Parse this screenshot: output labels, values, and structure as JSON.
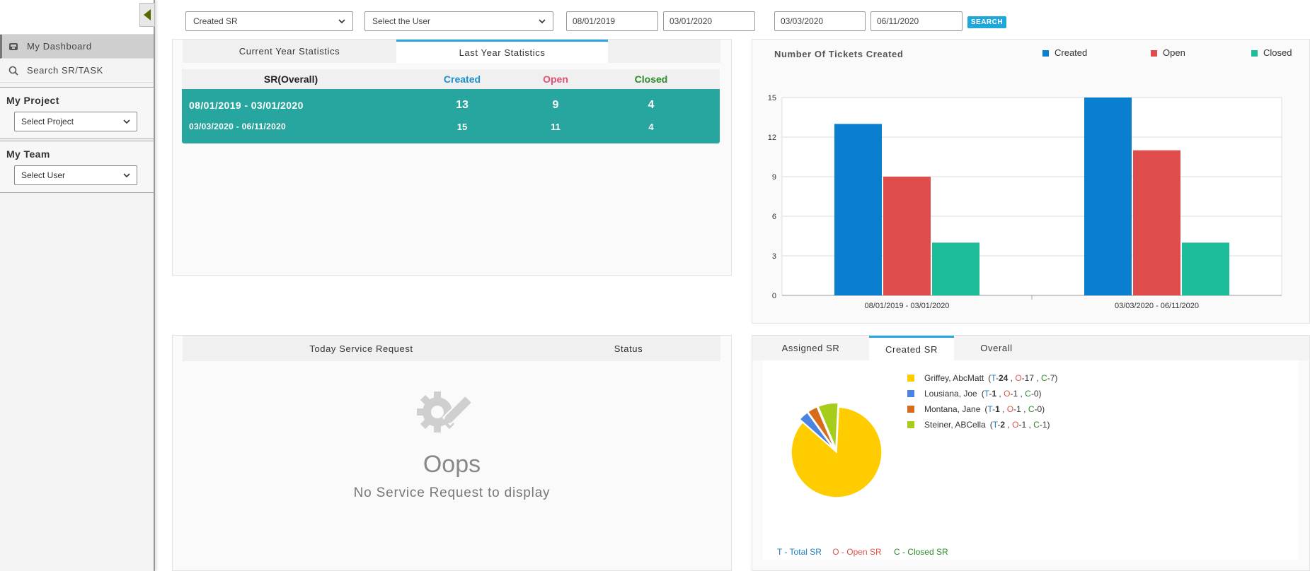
{
  "sidebar": {
    "nav": [
      {
        "label": "My Dashboard",
        "icon": "inbox-icon"
      },
      {
        "label": "Search SR/TASK",
        "icon": "search-icon"
      }
    ],
    "project": {
      "title": "My Project",
      "select": "Select Project"
    },
    "team": {
      "title": "My Team",
      "select": "Select User"
    }
  },
  "filters": {
    "type": "Created SR",
    "user": "Select the User",
    "date1_from": "08/01/2019",
    "date1_to": "03/01/2020",
    "date2_from": "03/03/2020",
    "date2_to": "06/11/2020",
    "search_label": "SEARCH"
  },
  "stats_panel": {
    "tabs": [
      "Current Year Statistics",
      "Last Year Statistics"
    ],
    "head": {
      "label": "SR(Overall)",
      "created": "Created",
      "open": "Open",
      "closed": "Closed"
    },
    "rows": [
      {
        "range": "08/01/2019 - 03/01/2020",
        "created": "13",
        "open": "9",
        "closed": "4"
      },
      {
        "range": "03/03/2020 - 06/11/2020",
        "created": "15",
        "open": "11",
        "closed": "4"
      }
    ]
  },
  "chart_panel": {
    "title": "Number Of Tickets Created"
  },
  "chart_data": {
    "type": "bar",
    "title": "Number Of Tickets Created",
    "categories": [
      "08/01/2019 - 03/01/2020",
      "03/03/2020 - 06/11/2020"
    ],
    "series": [
      {
        "name": "Created",
        "color": "#0a7fd0",
        "values": [
          13,
          15
        ]
      },
      {
        "name": "Open",
        "color": "#de4c4c",
        "values": [
          9,
          11
        ]
      },
      {
        "name": "Closed",
        "color": "#1dbd9a",
        "values": [
          4,
          4
        ]
      }
    ],
    "ylim": [
      0,
      15
    ],
    "yticks": [
      "0",
      "3",
      "6",
      "9",
      "12",
      "15"
    ],
    "grid": true,
    "legend": "top-right"
  },
  "requests_panel": {
    "head_left": "Today Service Request",
    "head_right": "Status",
    "oops": "Oops",
    "message": "No Service Request to display"
  },
  "pie_panel": {
    "tabs": [
      "Assigned SR",
      "Created SR",
      "Overall"
    ],
    "entries": [
      {
        "name": "Griffey, AbcMatt",
        "t": "24",
        "o": "17",
        "c": "7",
        "color": "#ffcc00"
      },
      {
        "name": "Lousiana, Joe",
        "t": "1",
        "o": "1",
        "c": "0",
        "color": "#4a84e0"
      },
      {
        "name": "Montana, Jane",
        "t": "1",
        "o": "1",
        "c": "0",
        "color": "#d76b1a"
      },
      {
        "name": "Steiner, ABCella",
        "t": "2",
        "o": "1",
        "c": "1",
        "color": "#a6cc1c"
      }
    ],
    "key": {
      "t": "T - Total SR",
      "o": "O - Open SR",
      "c": "C - Closed SR"
    }
  }
}
